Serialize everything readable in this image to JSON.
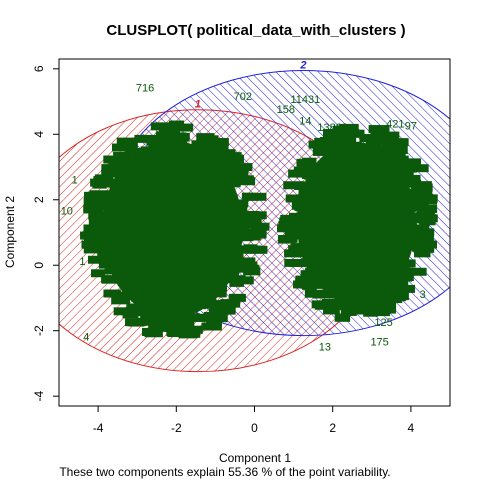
{
  "chart_data": {
    "type": "scatter",
    "title": "CLUSPLOT( political_data_with_clusters )",
    "xlabel": "Component 1",
    "ylabel": "Component 2",
    "subtitle": "These two components explain 55.36 % of the point variability.",
    "xlim": [
      -5.0,
      5.0
    ],
    "ylim": [
      -4.3,
      6.3
    ],
    "xticks": [
      -4,
      -2,
      0,
      2,
      4
    ],
    "yticks": [
      -4,
      -2,
      0,
      2,
      4,
      6
    ],
    "clusters": [
      {
        "name": "1",
        "center": [
          -1.45,
          0.75
        ],
        "rx": 4.6,
        "ry": 4.0,
        "color": "#dd2222"
      },
      {
        "name": "2",
        "center": [
          1.25,
          1.9
        ],
        "rx": 4.85,
        "ry": 4.05,
        "color": "#2222dd"
      }
    ],
    "point_labels": [
      {
        "text": "716",
        "x": -2.8,
        "y": 5.3
      },
      {
        "text": "702",
        "x": -0.3,
        "y": 5.05
      },
      {
        "text": "11431",
        "x": 1.3,
        "y": 4.95
      },
      {
        "text": "158",
        "x": 0.8,
        "y": 4.65
      },
      {
        "text": "14",
        "x": 1.3,
        "y": 4.3
      },
      {
        "text": "13883",
        "x": 2.0,
        "y": 4.1
      },
      {
        "text": "421",
        "x": 3.6,
        "y": 4.2
      },
      {
        "text": "97",
        "x": 4.0,
        "y": 4.15
      },
      {
        "text": "1",
        "x": -4.6,
        "y": 2.5
      },
      {
        "text": "10",
        "x": -4.8,
        "y": 1.55
      },
      {
        "text": "1",
        "x": -4.4,
        "y": 0.0
      },
      {
        "text": "125",
        "x": 3.3,
        "y": -1.85
      },
      {
        "text": "175",
        "x": 3.2,
        "y": -2.45
      },
      {
        "text": "13",
        "x": 1.8,
        "y": -2.6
      },
      {
        "text": "4",
        "x": -4.3,
        "y": -2.3
      },
      {
        "text": "3",
        "x": 4.3,
        "y": -1.0
      }
    ]
  }
}
